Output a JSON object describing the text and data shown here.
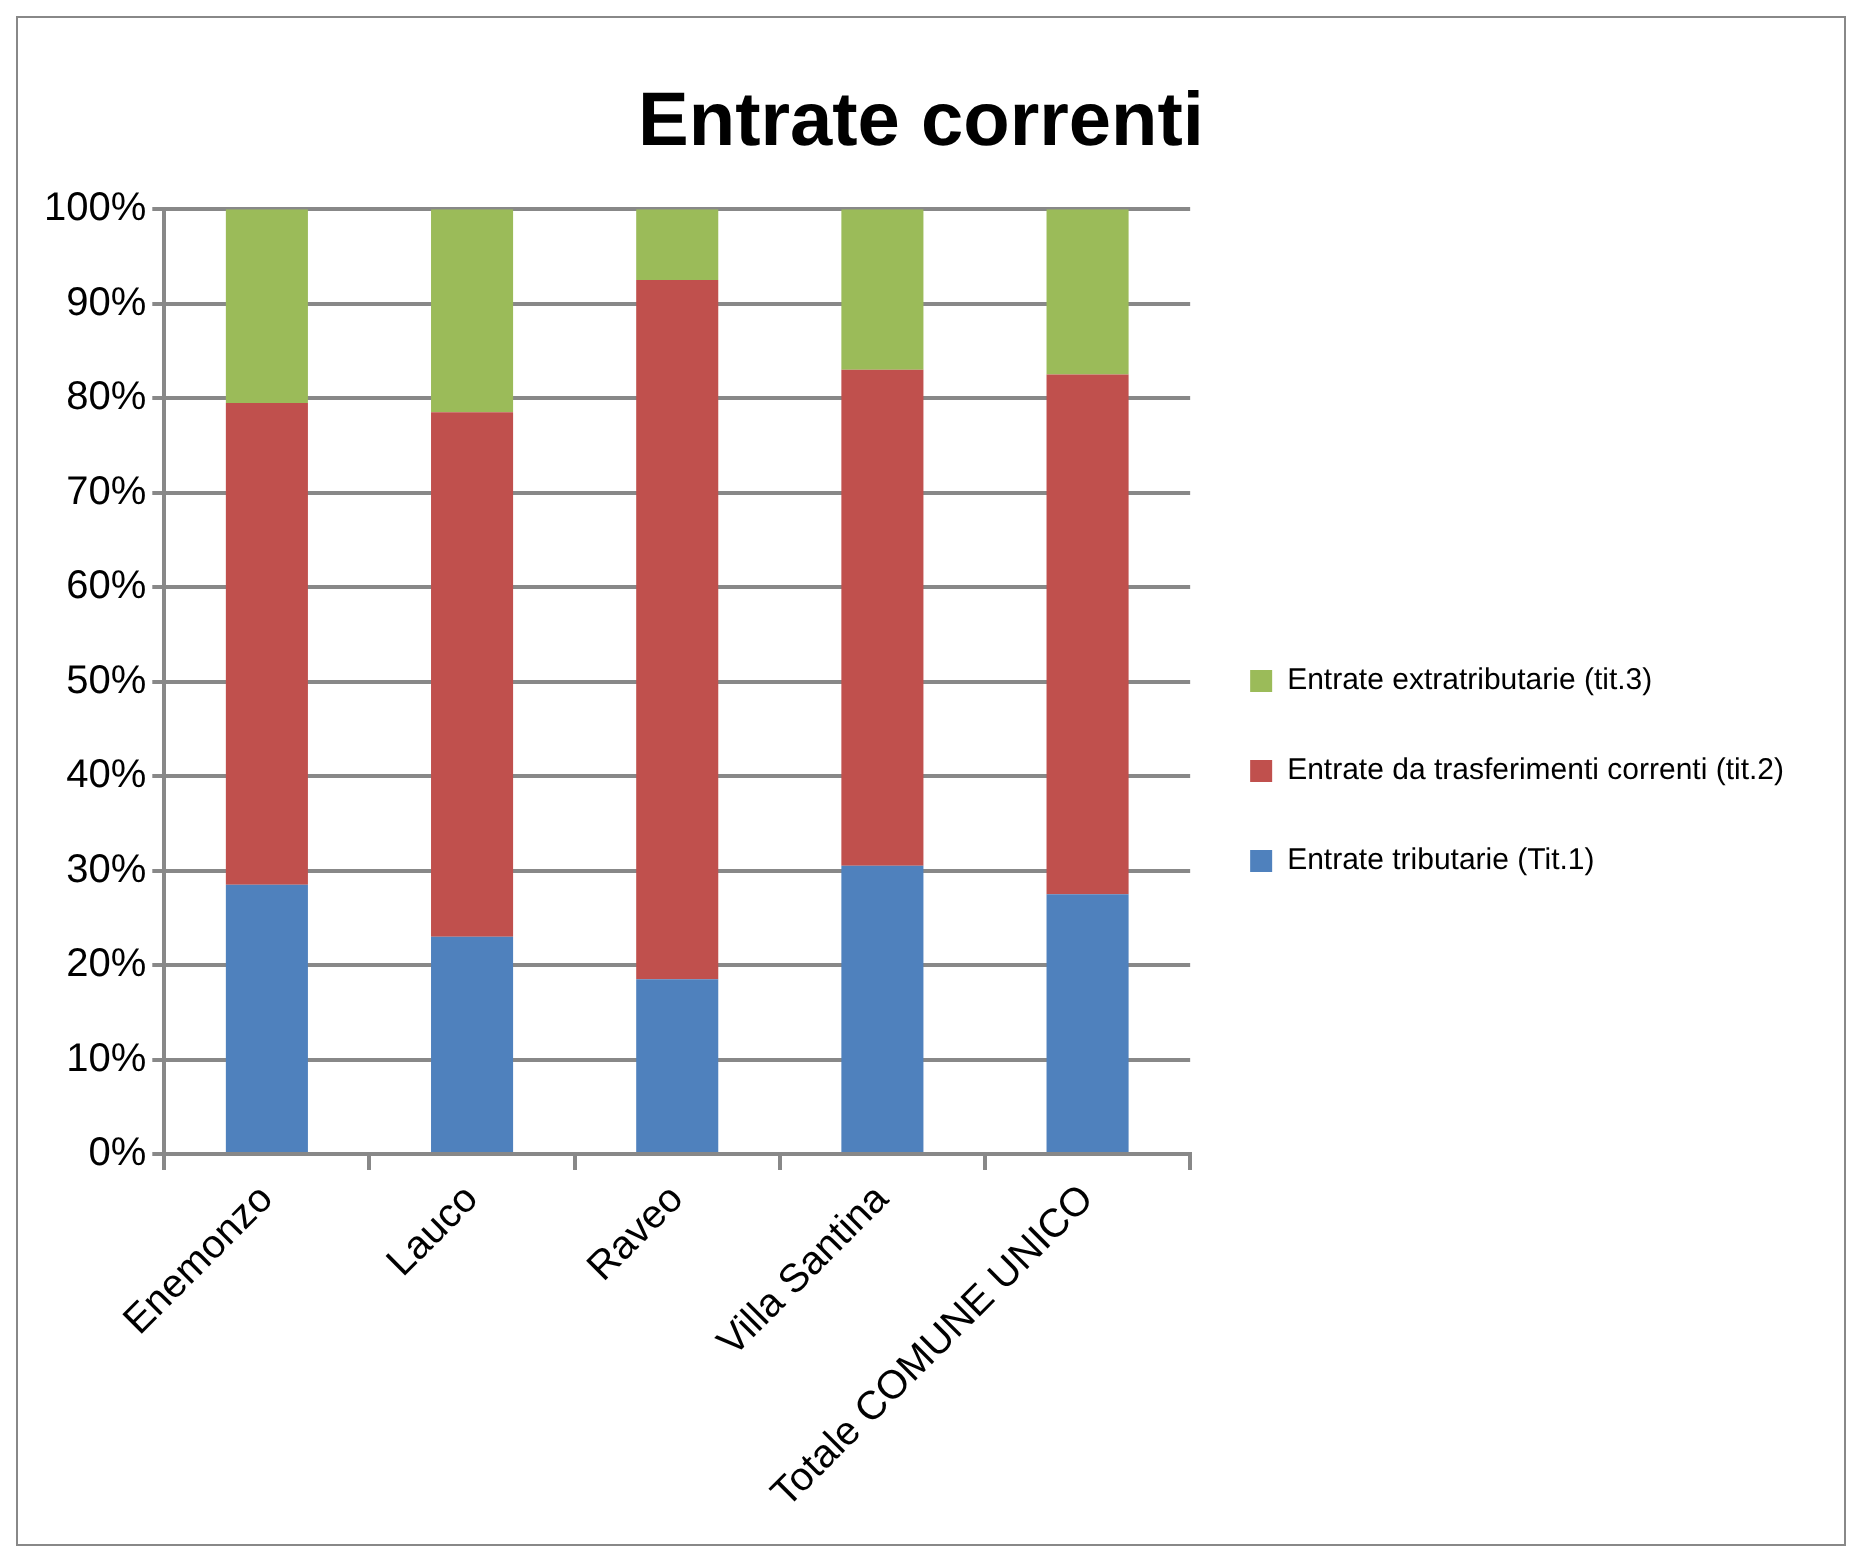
{
  "chart_data": {
    "type": "bar",
    "stacked": true,
    "title": "Entrate correnti",
    "categories": [
      "Enemonzo",
      "Lauco",
      "Raveo",
      "Villa Santina",
      "Totale COMUNE UNICO"
    ],
    "series": [
      {
        "name": "Entrate tributarie (Tit.1)",
        "color": "#4f81bd",
        "values": [
          28.5,
          23,
          18.5,
          30.5,
          27.5
        ]
      },
      {
        "name": "Entrate da trasferimenti correnti (tit.2)",
        "color": "#c0504d",
        "values": [
          51,
          55.5,
          74,
          52.5,
          55
        ]
      },
      {
        "name": "Entrate extratributarie (tit.3)",
        "color": "#9bbb59",
        "values": [
          20.5,
          21.5,
          7.5,
          17,
          17.5
        ]
      }
    ],
    "ylim": [
      0,
      100
    ],
    "yticks": [
      {
        "value": 0,
        "label": "0%"
      },
      {
        "value": 10,
        "label": "10%"
      },
      {
        "value": 20,
        "label": "20%"
      },
      {
        "value": 30,
        "label": "30%"
      },
      {
        "value": 40,
        "label": "40%"
      },
      {
        "value": 50,
        "label": "50%"
      },
      {
        "value": 60,
        "label": "60%"
      },
      {
        "value": 70,
        "label": "70%"
      },
      {
        "value": 80,
        "label": "80%"
      },
      {
        "value": 90,
        "label": "90%"
      },
      {
        "value": 100,
        "label": "100%"
      }
    ],
    "grid": "y",
    "legend": "right"
  }
}
